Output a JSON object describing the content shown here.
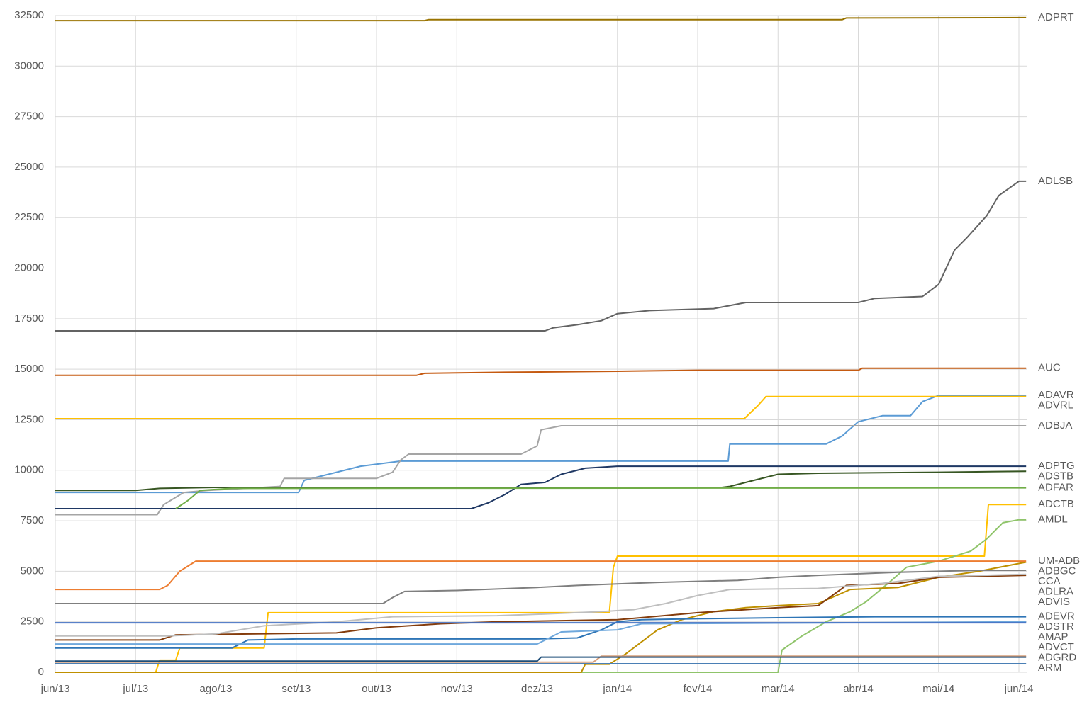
{
  "chart_data": {
    "type": "line",
    "grid": true,
    "xlim": [
      0,
      12.1
    ],
    "xticks": [
      {
        "value": 0,
        "label": "jun/13"
      },
      {
        "value": 1,
        "label": "jul/13"
      },
      {
        "value": 2,
        "label": "ago/13"
      },
      {
        "value": 3,
        "label": "set/13"
      },
      {
        "value": 4,
        "label": "out/13"
      },
      {
        "value": 5,
        "label": "nov/13"
      },
      {
        "value": 6,
        "label": "dez/13"
      },
      {
        "value": 7,
        "label": "jan/14"
      },
      {
        "value": 8,
        "label": "fev/14"
      },
      {
        "value": 9,
        "label": "mar/14"
      },
      {
        "value": 10,
        "label": "abr/14"
      },
      {
        "value": 11,
        "label": "mai/14"
      },
      {
        "value": 12,
        "label": "jun/14"
      }
    ],
    "ylim": [
      0,
      32500
    ],
    "yticks": [
      0,
      2500,
      5000,
      7500,
      10000,
      12500,
      15000,
      17500,
      20000,
      22500,
      25000,
      27500,
      30000,
      32500
    ],
    "series": [
      {
        "name": "ADPRT",
        "color": "#997300",
        "x": [
          0,
          4.6,
          4.65,
          9.8,
          9.85,
          12.09
        ],
        "values": [
          32250,
          32250,
          32300,
          32300,
          32380,
          32400
        ]
      },
      {
        "name": "ADLSB",
        "color": "#636363",
        "x": [
          0,
          6.1,
          6.2,
          6.5,
          6.8,
          7.0,
          7.4,
          8.2,
          8.6,
          10.0,
          10.2,
          10.8,
          11.0,
          11.2,
          11.35,
          11.6,
          11.75,
          12.0,
          12.09
        ],
        "values": [
          16900,
          16900,
          17050,
          17200,
          17400,
          17750,
          17900,
          18000,
          18300,
          18300,
          18500,
          18600,
          19200,
          20900,
          21500,
          22600,
          23600,
          24300,
          24300
        ]
      },
      {
        "name": "AUC",
        "color": "#C55A11",
        "x": [
          0,
          4.5,
          4.6,
          5.6,
          7.0,
          8.0,
          10.0,
          10.05,
          12.09
        ],
        "values": [
          14700,
          14700,
          14800,
          14850,
          14900,
          14950,
          14950,
          15050,
          15050
        ]
      },
      {
        "name": "ADAVR",
        "color": "#5B9BD5",
        "x": [
          0,
          3.03,
          3.1,
          3.4,
          3.8,
          4.3,
          8.38,
          8.4,
          9.6,
          9.8,
          10.0,
          10.3,
          10.65,
          10.8,
          11.0,
          12.09
        ],
        "values": [
          8900,
          8900,
          9500,
          9800,
          10200,
          10450,
          10450,
          11300,
          11300,
          11700,
          12400,
          12700,
          12700,
          13400,
          13700,
          13700
        ]
      },
      {
        "name": "ADVRL",
        "color": "#FFC000",
        "x": [
          0,
          8.58,
          8.75,
          8.85,
          12.09
        ],
        "values": [
          12550,
          12550,
          13200,
          13650,
          13650
        ]
      },
      {
        "name": "ADBJA",
        "color": "#A5A5A5",
        "x": [
          0,
          1.27,
          1.35,
          1.6,
          1.9,
          2.8,
          2.85,
          4.0,
          4.2,
          4.3,
          4.4,
          5.8,
          6.0,
          6.05,
          6.3,
          12.09
        ],
        "values": [
          7800,
          7800,
          8300,
          8900,
          9000,
          9200,
          9600,
          9600,
          9900,
          10500,
          10800,
          10800,
          11200,
          12000,
          12200,
          12200
        ]
      },
      {
        "name": "ADPTG",
        "color": "#1F3864",
        "x": [
          0,
          5.18,
          5.4,
          5.6,
          5.8,
          6.1,
          6.3,
          6.6,
          7.0,
          12.09
        ],
        "values": [
          8100,
          8100,
          8400,
          8800,
          9300,
          9400,
          9800,
          10100,
          10200,
          10200
        ]
      },
      {
        "name": "ADSTB",
        "color": "#375623",
        "x": [
          0,
          1.0,
          1.3,
          2.0,
          8.3,
          8.4,
          8.7,
          9.0,
          9.5,
          11.0,
          12.09
        ],
        "values": [
          9000,
          9000,
          9100,
          9150,
          9150,
          9200,
          9500,
          9800,
          9850,
          9900,
          9950
        ]
      },
      {
        "name": "ADFAR",
        "color": "#70AD47",
        "x": [
          1.5,
          1.65,
          1.8,
          2.2,
          12.09
        ],
        "values": [
          8100,
          8500,
          9000,
          9100,
          9130
        ]
      },
      {
        "name": "ADCTB",
        "color": "#FFC000",
        "x": [
          0,
          1.25,
          1.3,
          1.5,
          1.55,
          2.6,
          2.65,
          6.9,
          6.95,
          7.0,
          11.57,
          11.62,
          12.09
        ],
        "values": [
          0,
          0,
          600,
          600,
          1200,
          1200,
          2950,
          2950,
          5200,
          5750,
          5750,
          8300,
          8300
        ]
      },
      {
        "name": "AMDL",
        "color": "#8FC46A",
        "x": [
          0,
          9.0,
          9.05,
          9.3,
          9.6,
          9.9,
          10.1,
          10.4,
          10.6,
          11.0,
          11.4,
          11.6,
          11.8,
          12.0,
          12.09
        ],
        "values": [
          0,
          0,
          1100,
          1800,
          2500,
          3000,
          3500,
          4500,
          5200,
          5500,
          6000,
          6600,
          7400,
          7550,
          7550
        ]
      },
      {
        "name": "ADBGC",
        "color": "#BF9000",
        "x": [
          0,
          6.55,
          6.6,
          6.9,
          7.1,
          7.3,
          7.5,
          7.8,
          8.2,
          8.6,
          9.0,
          9.5,
          9.9,
          10.5,
          11.0,
          11.5,
          12.09
        ],
        "values": [
          0,
          0,
          400,
          400,
          900,
          1500,
          2100,
          2600,
          3000,
          3200,
          3300,
          3400,
          4100,
          4200,
          4700,
          5000,
          5450
        ]
      },
      {
        "name": "UM-ADB",
        "color": "#ED7D31",
        "x": [
          0,
          1.3,
          1.4,
          1.55,
          1.75,
          12.09
        ],
        "values": [
          4100,
          4100,
          4300,
          5000,
          5500,
          5500
        ]
      },
      {
        "name": "CCA",
        "color": "#7F7F7F",
        "x": [
          0,
          4.08,
          4.2,
          4.35,
          5.0,
          6.0,
          6.5,
          7.5,
          8.5,
          9.0,
          9.5,
          10.5,
          11.5,
          12.09
        ],
        "values": [
          3400,
          3400,
          3700,
          4000,
          4050,
          4200,
          4300,
          4450,
          4550,
          4700,
          4800,
          4950,
          5050,
          5050
        ]
      },
      {
        "name": "ADVIS",
        "color": "#843C0C",
        "x": [
          0,
          1.3,
          1.5,
          2.5,
          3.5,
          4.0,
          4.8,
          5.5,
          7.0,
          8.0,
          9.0,
          9.5,
          9.85,
          10.5,
          11.0,
          12.09
        ],
        "values": [
          1600,
          1600,
          1850,
          1900,
          1950,
          2200,
          2400,
          2500,
          2600,
          2950,
          3200,
          3300,
          4300,
          4400,
          4700,
          4800
        ]
      },
      {
        "name": "ADLRA",
        "color": "#BFBFBF",
        "x": [
          0,
          1.4,
          2.0,
          2.6,
          3.5,
          4.2,
          5.5,
          6.2,
          6.8,
          7.2,
          7.6,
          8.0,
          8.4,
          9.5,
          10.3,
          11.0,
          12.09
        ],
        "values": [
          1800,
          1800,
          1900,
          2300,
          2500,
          2750,
          2800,
          2900,
          3000,
          3100,
          3400,
          3800,
          4100,
          4150,
          4400,
          4750,
          4850
        ]
      },
      {
        "name": "ADEVR",
        "color": "#2E75B6",
        "x": [
          0,
          2.2,
          2.4,
          3.0,
          6.0,
          6.5,
          6.8,
          7.0,
          7.3,
          8.0,
          9.0,
          10.2,
          12.09
        ],
        "values": [
          1200,
          1200,
          1600,
          1650,
          1650,
          1700,
          2100,
          2500,
          2600,
          2650,
          2700,
          2750,
          2750
        ]
      },
      {
        "name": "ADSTR",
        "color": "#6FA8DC",
        "x": [
          0,
          6.0,
          6.3,
          7.0,
          7.3,
          12.09
        ],
        "values": [
          1400,
          1400,
          2000,
          2100,
          2400,
          2500
        ]
      },
      {
        "name": "AMAP",
        "color": "#4472C4",
        "x": [
          0,
          12.09
        ],
        "values": [
          2450,
          2450
        ]
      },
      {
        "name": "ADVCT",
        "color": "#D9A07A",
        "x": [
          0,
          6.7,
          6.8,
          12.09
        ],
        "values": [
          500,
          500,
          800,
          800
        ]
      },
      {
        "name": "ADGRD",
        "color": "#1F4E79",
        "x": [
          0,
          6.0,
          6.05,
          12.09
        ],
        "values": [
          550,
          550,
          750,
          750
        ]
      },
      {
        "name": "ARM",
        "color": "#4A7FB5",
        "x": [
          0,
          12.09
        ],
        "values": [
          420,
          420
        ]
      }
    ]
  }
}
